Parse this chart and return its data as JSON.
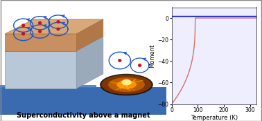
{
  "title_text": "Superconductivity above a magnet",
  "xlabel": "Temperature (K)",
  "ylabel": "Moment",
  "xlim": [
    0,
    325
  ],
  "ylim": [
    -80,
    10
  ],
  "yticks": [
    -80,
    -60,
    -40,
    -20,
    0
  ],
  "xticks": [
    0,
    100,
    200,
    300
  ],
  "blue_line_y": 1.5,
  "tc": 90,
  "moment_min": -80,
  "blue_color": "#1a1acc",
  "red_color": "#cc6655",
  "panel_bg": "#ffffff",
  "graph_bg": "#eeeeff",
  "fig_bg": "#ffffff",
  "border_color": "#888888",
  "loop_color": "#2266cc",
  "dot_color": "#cc1111",
  "top_layer_color": "#c8906a",
  "mid_layer_color": "#aabbd0",
  "base_slab_color": "#2255aa",
  "base_slab_light": "#4477cc",
  "fire_outer": "#b06010",
  "fire_mid": "#d08020",
  "fire_inner": "#ffee44",
  "spark_color": "#ffcc00",
  "floor_color": "#3366bb"
}
